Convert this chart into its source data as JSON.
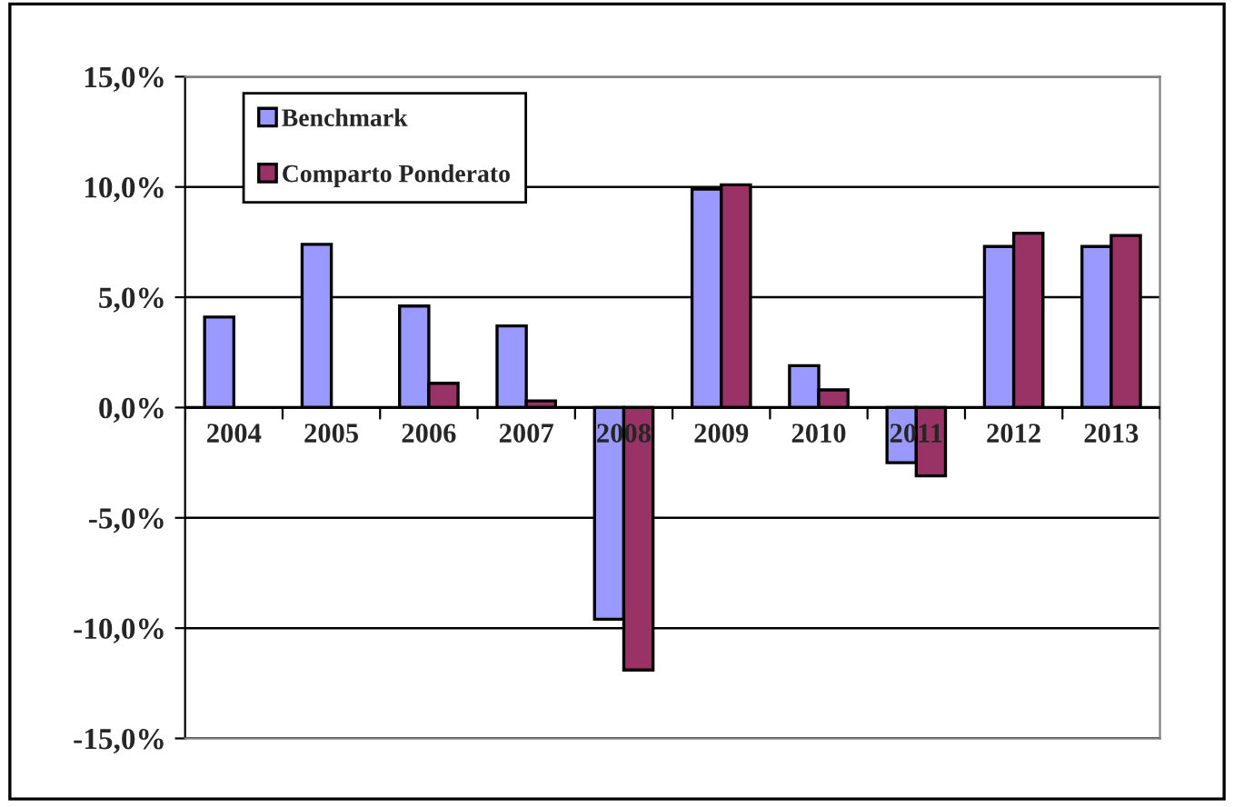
{
  "chart_data": {
    "type": "bar",
    "categories": [
      "2004",
      "2005",
      "2006",
      "2007",
      "2008",
      "2009",
      "2010",
      "2011",
      "2012",
      "2013"
    ],
    "series": [
      {
        "name": "Benchmark",
        "color": "#9999ff",
        "values": [
          4.1,
          7.4,
          4.6,
          3.7,
          -9.6,
          9.9,
          1.9,
          -2.5,
          7.3,
          7.3
        ]
      },
      {
        "name": "Comparto Ponderato",
        "color": "#993366",
        "values": [
          null,
          null,
          1.1,
          0.3,
          -11.9,
          10.1,
          0.8,
          -3.1,
          7.9,
          7.8
        ]
      }
    ],
    "ylim": [
      -15,
      15
    ],
    "yticks": [
      {
        "value": -15,
        "label": "-15,0%"
      },
      {
        "value": -10,
        "label": "-10,0%"
      },
      {
        "value": -5,
        "label": "-5,0%"
      },
      {
        "value": 0,
        "label": "0,0%"
      },
      {
        "value": 5,
        "label": "5,0%"
      },
      {
        "value": 10,
        "label": "10,0%"
      },
      {
        "value": 15,
        "label": "15,0%"
      }
    ],
    "grid": "y",
    "legend": "top left"
  }
}
